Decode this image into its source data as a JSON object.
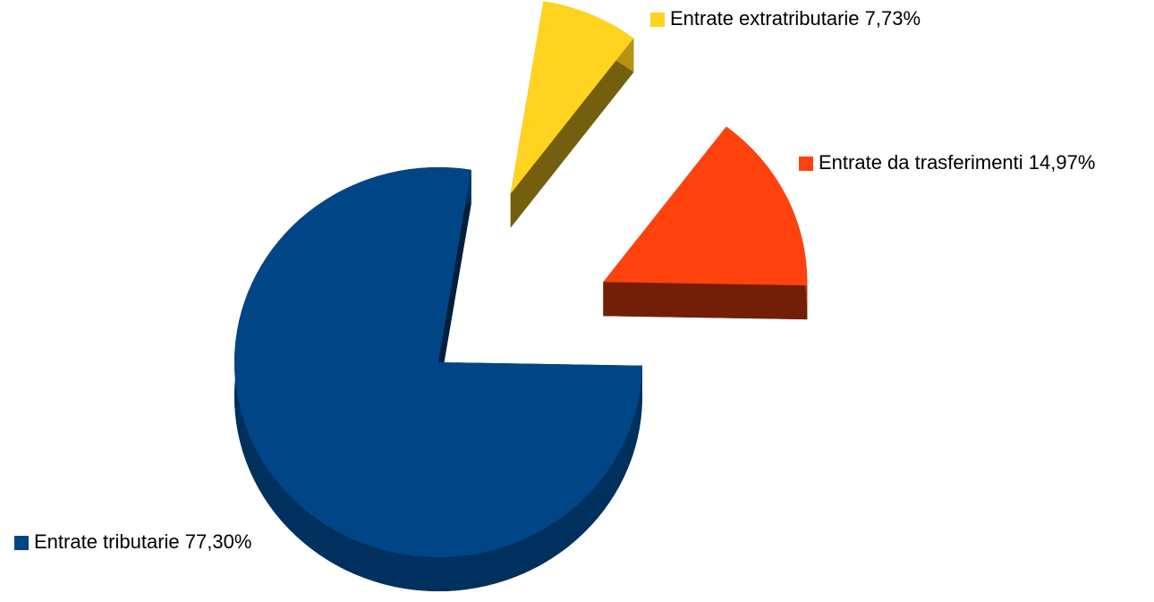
{
  "chart_data": {
    "type": "pie",
    "categories": [
      "Entrate tributarie",
      "Entrate extratributarie",
      "Entrate da trasferimenti"
    ],
    "values": [
      77.3,
      7.73,
      14.97
    ],
    "value_labels": [
      "77,30%",
      "7,73%",
      "14,97%"
    ],
    "colors": [
      "#004586",
      "#ffd320",
      "#ff420e"
    ]
  }
}
